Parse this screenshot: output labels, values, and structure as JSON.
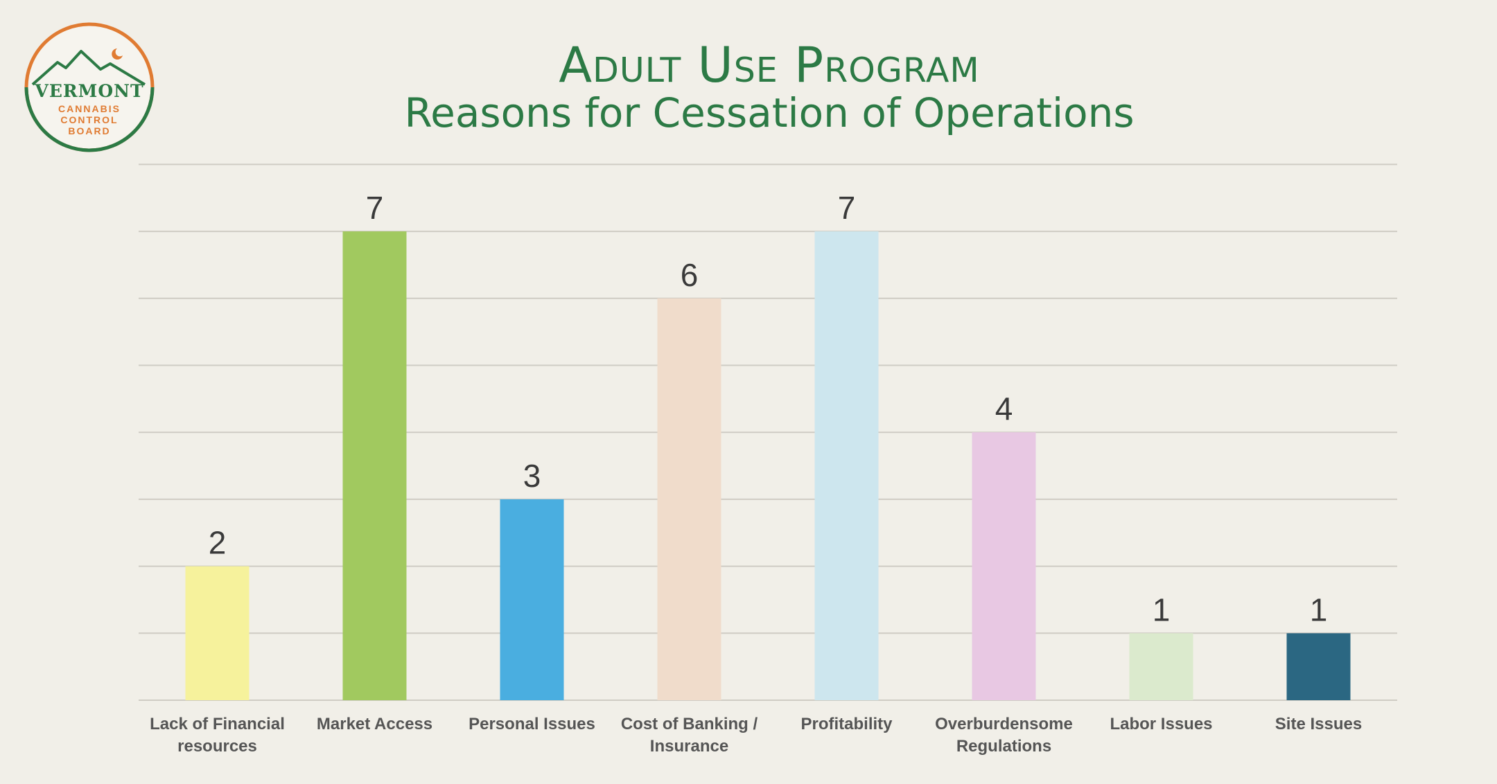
{
  "logo": {
    "line1": "VERMONT",
    "line2": "CANNABIS",
    "line3": "CONTROL",
    "line4": "BOARD"
  },
  "header": {
    "title": "Adult Use Program",
    "subtitle": "Reasons for Cessation of Operations"
  },
  "colors": {
    "brand_green": "#2c7a45",
    "brand_orange": "#e07b32",
    "grid": "#cfccc4",
    "label": "#555555",
    "value_label": "#3a3a3a"
  },
  "chart_data": {
    "type": "bar",
    "title": "Reasons for Cessation of Operations",
    "xlabel": "",
    "ylabel": "",
    "ylim": [
      0,
      8
    ],
    "grid": true,
    "categories": [
      "Lack of Financial resources",
      "Market Access",
      "Personal Issues",
      "Cost of Banking / Insurance",
      "Profitability",
      "Overburdensome Regulations",
      "Labor Issues",
      "Site Issues"
    ],
    "category_lines": [
      [
        "Lack of Financial",
        "resources"
      ],
      [
        "Market Access"
      ],
      [
        "Personal Issues"
      ],
      [
        "Cost of Banking /",
        "Insurance"
      ],
      [
        "Profitability"
      ],
      [
        "Overburdensome",
        "Regulations"
      ],
      [
        "Labor Issues"
      ],
      [
        "Site Issues"
      ]
    ],
    "values": [
      2,
      7,
      3,
      6,
      7,
      4,
      1,
      1
    ],
    "value_labels": [
      "2",
      "7",
      "3",
      "6",
      "7",
      "4",
      "1",
      "1"
    ],
    "bar_colors": [
      "#f6f29c",
      "#a1c95f",
      "#4aaee0",
      "#f0dccb",
      "#cde6ee",
      "#e8c8e3",
      "#dbeacd",
      "#2b6782"
    ]
  }
}
